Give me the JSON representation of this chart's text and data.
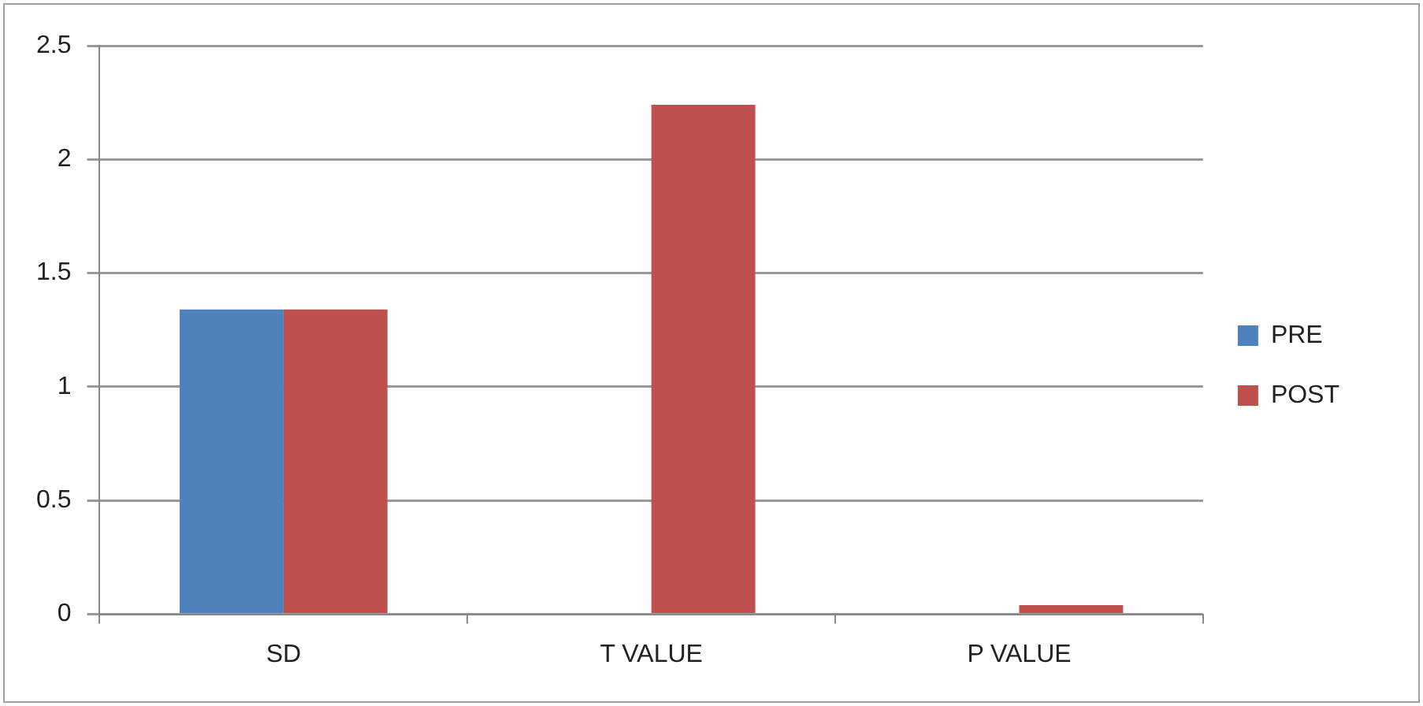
{
  "chart_data": {
    "type": "bar",
    "categories": [
      "SD",
      "T VALUE",
      "P VALUE"
    ],
    "series": [
      {
        "name": "PRE",
        "color": "#4f81bd",
        "values": [
          1.34,
          null,
          null
        ]
      },
      {
        "name": "POST",
        "color": "#c0504d",
        "values": [
          1.34,
          2.24,
          0.04
        ]
      }
    ],
    "ylim": [
      0,
      2.5
    ],
    "yticks": [
      0,
      0.5,
      1,
      1.5,
      2,
      2.5
    ],
    "grid": "y",
    "legend": "right"
  }
}
